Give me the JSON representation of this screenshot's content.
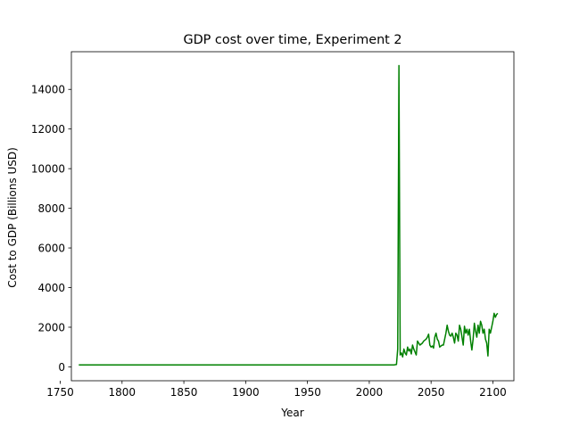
{
  "chart_data": {
    "type": "line",
    "title": "GDP cost over time, Experiment 2",
    "xlabel": "Year",
    "ylabel": "Cost to GDP (Billions USD)",
    "xlim": [
      1759,
      2117
    ],
    "ylim": [
      -700,
      15900
    ],
    "xticks": [
      1750,
      1800,
      1850,
      1900,
      1950,
      2000,
      2050,
      2100
    ],
    "yticks": [
      0,
      2000,
      4000,
      6000,
      8000,
      10000,
      12000,
      14000
    ],
    "grid": false,
    "legend": "none",
    "colors": {
      "line": "#008000",
      "axes": "#000000",
      "background": "#ffffff"
    },
    "series": [
      {
        "x": [
          1765,
          1800,
          1850,
          1900,
          1950,
          2000,
          2020,
          2022,
          2023,
          2024,
          2025,
          2026,
          2027,
          2028,
          2029,
          2030,
          2031,
          2032,
          2033,
          2034,
          2035,
          2036,
          2037,
          2038,
          2039,
          2040,
          2041,
          2042,
          2043,
          2044,
          2045,
          2046,
          2047,
          2048,
          2049,
          2050,
          2051,
          2052,
          2053,
          2054,
          2055,
          2056,
          2057,
          2058,
          2059,
          2060,
          2061,
          2062,
          2063,
          2064,
          2065,
          2066,
          2067,
          2068,
          2069,
          2070,
          2071,
          2072,
          2073,
          2074,
          2075,
          2076,
          2077,
          2078,
          2079,
          2080,
          2081,
          2082,
          2083,
          2084,
          2085,
          2086,
          2087,
          2088,
          2089,
          2090,
          2091,
          2092,
          2093,
          2094,
          2095,
          2096,
          2097,
          2098,
          2099,
          2100,
          2101,
          2102,
          2103,
          2104
        ],
        "y": [
          100,
          100,
          100,
          100,
          100,
          100,
          100,
          120,
          900,
          15200,
          600,
          700,
          500,
          900,
          700,
          600,
          1000,
          800,
          900,
          650,
          1100,
          900,
          750,
          600,
          1300,
          1200,
          1100,
          1150,
          1200,
          1300,
          1350,
          1400,
          1500,
          1650,
          1100,
          1000,
          1050,
          950,
          1500,
          1700,
          1400,
          1300,
          1000,
          1050,
          1100,
          1100,
          1400,
          1700,
          2100,
          1800,
          1600,
          1550,
          1700,
          1500,
          1200,
          1700,
          1600,
          1300,
          2100,
          1900,
          1500,
          1100,
          2050,
          1700,
          1900,
          1600,
          1900,
          1300,
          850,
          1400,
          2200,
          1800,
          1500,
          2100,
          1700,
          2300,
          2100,
          1700,
          1900,
          1400,
          1200,
          550,
          1900,
          1700,
          2000,
          2300,
          2700,
          2500,
          2650,
          2700
        ]
      }
    ]
  }
}
